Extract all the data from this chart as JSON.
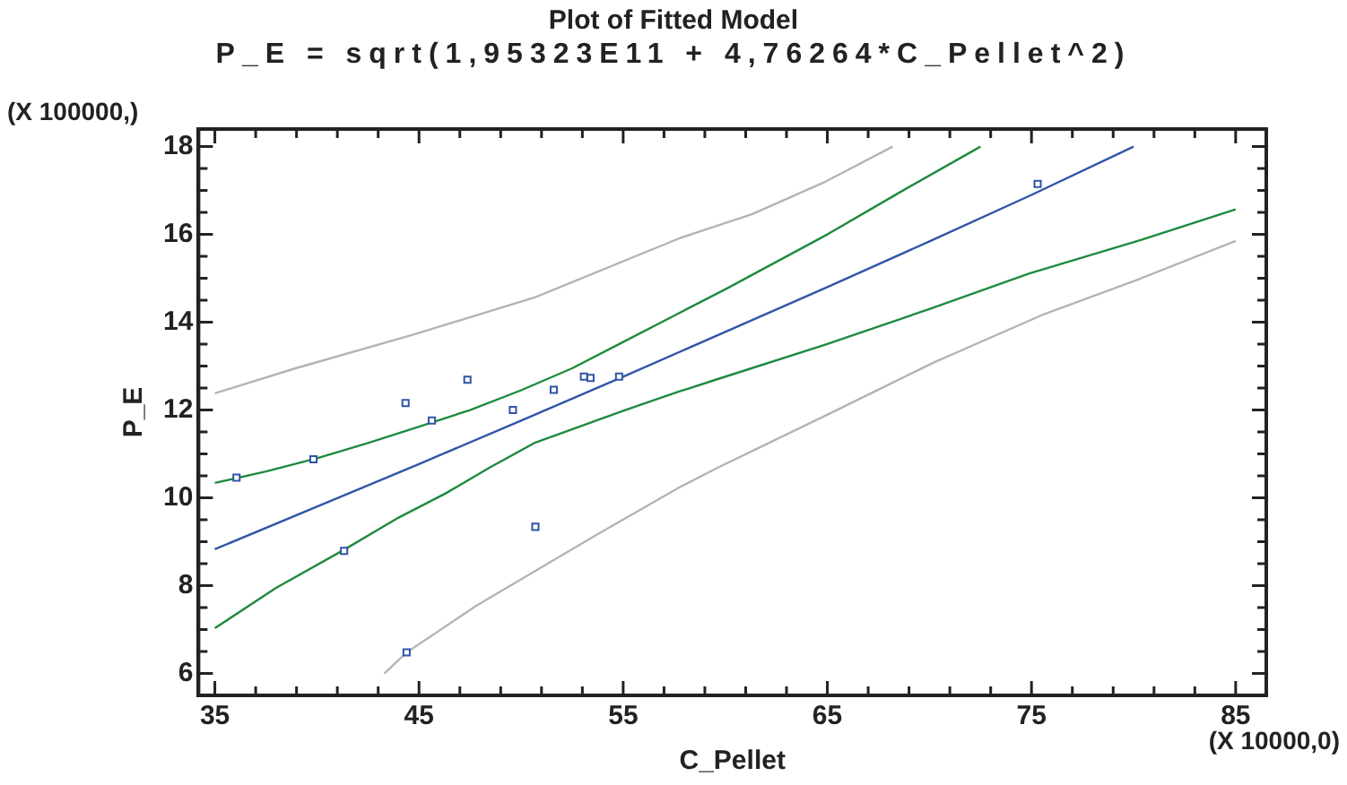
{
  "chart_data": {
    "type": "scatter",
    "title": "Plot of Fitted Model",
    "subtitle": "P_E = sqrt(1,95323E11 + 4,76264*C_Pellet^2)",
    "xlabel": "C_Pellet",
    "ylabel": "P_E",
    "annotations": [
      "(X 100000,)",
      "(X 10000,0)"
    ],
    "xlim": [
      34.2,
      86.5
    ],
    "ylim": [
      5.5,
      18.4
    ],
    "xticks": [
      35,
      {
        "value": 37,
        "label": null
      },
      {
        "value": 39,
        "label": null
      },
      {
        "value": 41,
        "label": null
      },
      {
        "value": 43,
        "label": null
      },
      45,
      {
        "value": 47,
        "label": null
      },
      {
        "value": 49,
        "label": null
      },
      {
        "value": 51,
        "label": null
      },
      {
        "value": 53,
        "label": null
      },
      55,
      {
        "value": 57,
        "label": null
      },
      {
        "value": 59,
        "label": null
      },
      {
        "value": 61,
        "label": null
      },
      {
        "value": 63,
        "label": null
      },
      65,
      {
        "value": 67,
        "label": null
      },
      {
        "value": 69,
        "label": null
      },
      {
        "value": 71,
        "label": null
      },
      {
        "value": 73,
        "label": null
      },
      75,
      {
        "value": 77,
        "label": null
      },
      {
        "value": 79,
        "label": null
      },
      {
        "value": 81,
        "label": null
      },
      {
        "value": 83,
        "label": null
      },
      85
    ],
    "yticks": [
      6,
      {
        "value": 6.5,
        "label": null
      },
      {
        "value": 7,
        "label": null
      },
      {
        "value": 7.5,
        "label": null
      },
      8,
      {
        "value": 8.5,
        "label": null
      },
      {
        "value": 9,
        "label": null
      },
      {
        "value": 9.5,
        "label": null
      },
      10,
      {
        "value": 10.5,
        "label": null
      },
      {
        "value": 11,
        "label": null
      },
      {
        "value": 11.5,
        "label": null
      },
      12,
      {
        "value": 12.5,
        "label": null
      },
      {
        "value": 13,
        "label": null
      },
      {
        "value": 13.5,
        "label": null
      },
      14,
      {
        "value": 14.5,
        "label": null
      },
      {
        "value": 15,
        "label": null
      },
      {
        "value": 15.5,
        "label": null
      },
      16,
      {
        "value": 16.5,
        "label": null
      },
      {
        "value": 17,
        "label": null
      },
      {
        "value": 17.5,
        "label": null
      },
      18
    ],
    "grid": false,
    "legend": false,
    "series": [
      {
        "type": "line",
        "marker": "none",
        "color": "#b4b4b4",
        "x": [
          35,
          38.95,
          44.8,
          50.7,
          57.8,
          61.3,
          64.9,
          68.2
        ],
        "values": [
          12.38,
          12.95,
          13.73,
          14.57,
          15.92,
          16.46,
          17.2,
          18.0
        ]
      },
      {
        "type": "line",
        "marker": "none",
        "color": "#b4b4b4",
        "x": [
          43.3,
          44.4,
          47.8,
          53.7,
          57.8,
          59.6,
          64.9,
          70.2,
          75.5,
          80.2,
          85
        ],
        "values": [
          6.0,
          6.48,
          7.54,
          9.16,
          10.25,
          10.68,
          11.87,
          13.08,
          14.16,
          14.97,
          15.85
        ]
      },
      {
        "type": "line",
        "marker": "none",
        "color": "#1e8a3e",
        "x": [
          35,
          37.5,
          40,
          42.5,
          45,
          47.5,
          50,
          52.5,
          55,
          57.5,
          60,
          65,
          68.7,
          72.5
        ],
        "values": [
          10.34,
          10.6,
          10.9,
          11.25,
          11.62,
          12.0,
          12.45,
          12.95,
          13.55,
          14.15,
          14.75,
          16.0,
          17.0,
          18.0
        ]
      },
      {
        "type": "line",
        "marker": "none",
        "color": "#1e8a3e",
        "x": [
          35,
          38,
          41.3,
          44,
          46.3,
          48.5,
          50.7,
          55.1,
          57.8,
          59.6,
          64.9,
          70,
          74.9,
          80.2,
          85
        ],
        "values": [
          7.03,
          7.95,
          8.81,
          9.55,
          10.1,
          10.7,
          11.26,
          12.0,
          12.43,
          12.7,
          13.49,
          14.3,
          15.11,
          15.85,
          16.57
        ]
      },
      {
        "type": "line",
        "marker": "none",
        "color": "#2f55a8",
        "x": [
          35,
          40,
          45,
          50,
          55,
          60,
          65,
          70,
          75,
          80
        ],
        "values": [
          8.83,
          9.8,
          10.77,
          11.76,
          12.76,
          13.78,
          14.8,
          15.84,
          16.9,
          18.0
        ]
      },
      {
        "type": "scatter",
        "marker": "square",
        "color": "#2f55a8",
        "x": [
          36.06,
          39.83,
          41.33,
          44.34,
          44.39,
          45.63,
          47.37,
          49.6,
          50.7,
          51.6,
          53.08,
          53.4,
          54.8,
          75.3
        ],
        "values": [
          10.46,
          10.88,
          8.79,
          12.16,
          6.48,
          11.76,
          12.69,
          12.0,
          9.34,
          12.46,
          12.76,
          12.73,
          12.76,
          17.15
        ]
      }
    ]
  }
}
